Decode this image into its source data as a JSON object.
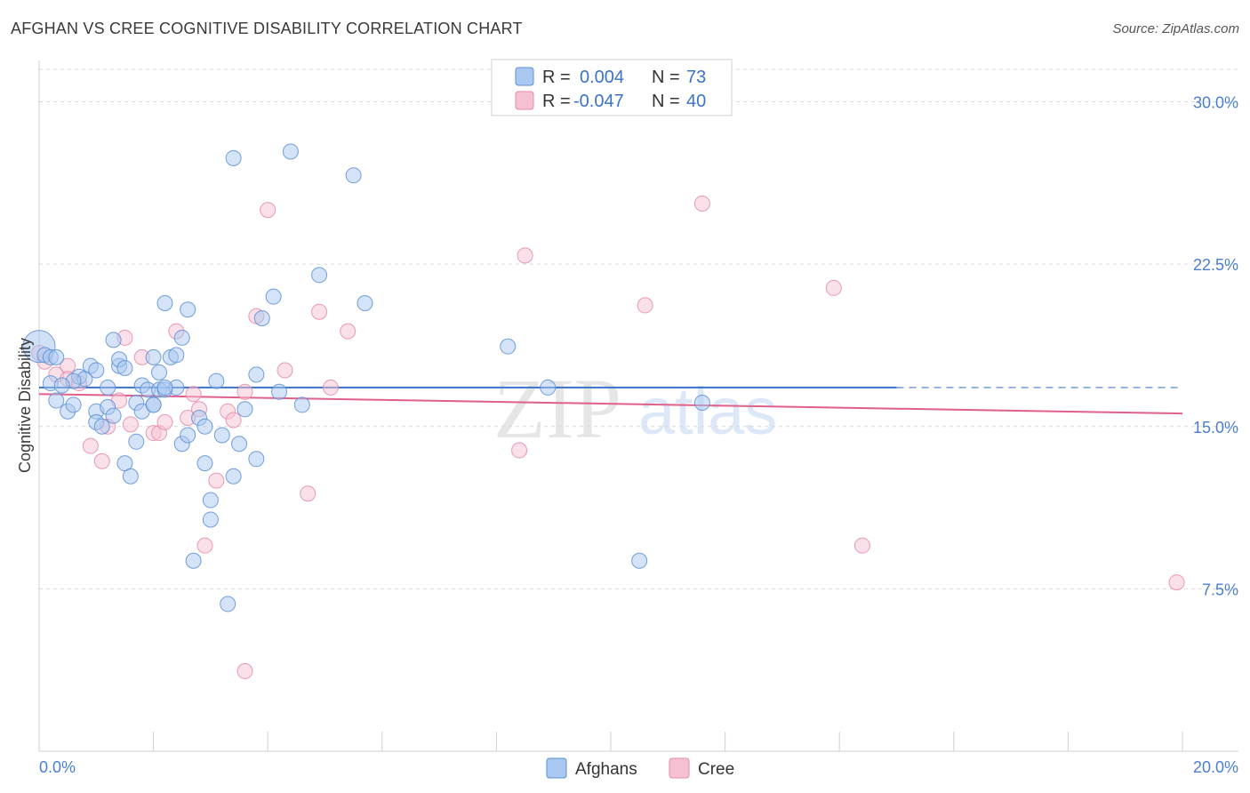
{
  "header": {
    "title": "AFGHAN VS CREE COGNITIVE DISABILITY CORRELATION CHART",
    "source": "Source: ZipAtlas.com"
  },
  "legend": {
    "afghans": {
      "r_label": "R =",
      "r_value": "0.004",
      "n_label": "N =",
      "n_value": "73"
    },
    "cree": {
      "r_label": "R =",
      "r_value": "-0.047",
      "n_label": "N =",
      "n_value": "40"
    }
  },
  "bottom_legend": {
    "afghans": "Afghans",
    "cree": "Cree"
  },
  "watermark": {
    "zip": "ZIP",
    "atlas": "atlas"
  },
  "colors": {
    "afghans_fill": "#a9c8f0",
    "afghans_stroke": "#5a8fd6",
    "afghans_line": "#3a73c9",
    "cree_fill": "#f6c1d2",
    "cree_stroke": "#e58aa8",
    "cree_line": "#e0608a",
    "grid": "#d9d9d9",
    "tick_text": "#4a7fd0"
  },
  "chart_data": {
    "type": "scatter",
    "title": "AFGHAN VS CREE COGNITIVE DISABILITY CORRELATION CHART",
    "xlabel": "",
    "ylabel": "Cognitive Disability",
    "xlim": [
      0,
      20
    ],
    "ylim": [
      0,
      31.5
    ],
    "x_tick_labels": [
      "0.0%",
      "20.0%"
    ],
    "y_ticks": [
      7.5,
      15.0,
      22.5,
      30.0
    ],
    "y_tick_labels": [
      "7.5%",
      "15.0%",
      "22.5%",
      "30.0%"
    ],
    "grid": true,
    "legend_position": "top-center",
    "series": [
      {
        "name": "Afghans",
        "trend": {
          "x": [
            0.0,
            15.0
          ],
          "y": [
            16.8,
            16.8
          ],
          "dashed_to": 20.0
        },
        "points": [
          [
            0.0,
            18.7
          ],
          [
            0.1,
            18.3
          ],
          [
            0.2,
            18.2
          ],
          [
            0.2,
            17.0
          ],
          [
            0.3,
            16.2
          ],
          [
            0.5,
            15.7
          ],
          [
            0.6,
            16.0
          ],
          [
            0.7,
            17.3
          ],
          [
            0.8,
            17.2
          ],
          [
            0.9,
            17.8
          ],
          [
            1.0,
            15.7
          ],
          [
            1.0,
            15.2
          ],
          [
            1.1,
            15.0
          ],
          [
            1.2,
            16.8
          ],
          [
            1.2,
            15.9
          ],
          [
            1.3,
            15.5
          ],
          [
            1.3,
            19.0
          ],
          [
            1.4,
            17.8
          ],
          [
            1.4,
            18.1
          ],
          [
            1.5,
            17.7
          ],
          [
            1.5,
            13.3
          ],
          [
            1.6,
            12.7
          ],
          [
            1.7,
            16.1
          ],
          [
            1.7,
            14.3
          ],
          [
            1.8,
            15.7
          ],
          [
            1.8,
            16.9
          ],
          [
            1.9,
            16.7
          ],
          [
            2.0,
            16.0
          ],
          [
            2.0,
            18.2
          ],
          [
            2.1,
            16.7
          ],
          [
            2.1,
            17.5
          ],
          [
            2.2,
            16.7
          ],
          [
            2.2,
            20.7
          ],
          [
            2.3,
            18.2
          ],
          [
            2.4,
            18.3
          ],
          [
            2.4,
            16.8
          ],
          [
            2.5,
            19.1
          ],
          [
            2.5,
            14.2
          ],
          [
            2.6,
            14.6
          ],
          [
            2.6,
            20.4
          ],
          [
            2.7,
            8.8
          ],
          [
            2.8,
            15.4
          ],
          [
            2.9,
            15.0
          ],
          [
            2.9,
            13.3
          ],
          [
            3.0,
            11.6
          ],
          [
            3.0,
            10.7
          ],
          [
            3.1,
            17.1
          ],
          [
            3.2,
            14.6
          ],
          [
            3.3,
            6.8
          ],
          [
            3.4,
            12.7
          ],
          [
            3.4,
            27.4
          ],
          [
            3.5,
            14.2
          ],
          [
            3.6,
            15.8
          ],
          [
            3.8,
            17.4
          ],
          [
            3.8,
            13.5
          ],
          [
            3.9,
            20.0
          ],
          [
            4.1,
            21.0
          ],
          [
            4.2,
            16.6
          ],
          [
            4.4,
            27.7
          ],
          [
            4.6,
            16.0
          ],
          [
            4.9,
            22.0
          ],
          [
            5.5,
            26.6
          ],
          [
            5.7,
            20.7
          ],
          [
            8.2,
            18.7
          ],
          [
            8.9,
            16.8
          ],
          [
            10.5,
            8.8
          ],
          [
            11.6,
            16.1
          ],
          [
            0.3,
            18.2
          ],
          [
            0.6,
            17.1
          ],
          [
            1.0,
            17.6
          ],
          [
            2.0,
            16.0
          ],
          [
            0.4,
            16.9
          ],
          [
            2.2,
            16.8
          ]
        ]
      },
      {
        "name": "Cree",
        "trend": {
          "x": [
            0.0,
            20.0
          ],
          "y": [
            16.5,
            15.6
          ]
        },
        "points": [
          [
            0.1,
            18.0
          ],
          [
            0.3,
            17.4
          ],
          [
            0.5,
            17.8
          ],
          [
            0.5,
            17.2
          ],
          [
            0.7,
            17.0
          ],
          [
            0.9,
            14.1
          ],
          [
            1.1,
            13.4
          ],
          [
            1.2,
            15.0
          ],
          [
            1.4,
            16.2
          ],
          [
            1.5,
            19.1
          ],
          [
            1.6,
            15.1
          ],
          [
            1.8,
            18.2
          ],
          [
            2.0,
            14.7
          ],
          [
            2.1,
            14.7
          ],
          [
            2.2,
            15.2
          ],
          [
            2.4,
            19.4
          ],
          [
            2.6,
            15.4
          ],
          [
            2.7,
            16.5
          ],
          [
            2.8,
            15.8
          ],
          [
            2.9,
            9.5
          ],
          [
            3.1,
            12.5
          ],
          [
            3.3,
            15.7
          ],
          [
            3.4,
            15.3
          ],
          [
            3.6,
            3.7
          ],
          [
            3.6,
            16.6
          ],
          [
            3.8,
            20.1
          ],
          [
            4.0,
            25.0
          ],
          [
            4.3,
            17.6
          ],
          [
            4.7,
            11.9
          ],
          [
            4.9,
            20.3
          ],
          [
            5.1,
            16.8
          ],
          [
            5.4,
            19.4
          ],
          [
            8.4,
            13.9
          ],
          [
            8.5,
            22.9
          ],
          [
            10.6,
            20.6
          ],
          [
            11.6,
            25.3
          ],
          [
            13.9,
            21.4
          ],
          [
            14.4,
            9.5
          ],
          [
            19.9,
            7.8
          ],
          [
            0.0,
            18.4
          ]
        ]
      }
    ]
  }
}
